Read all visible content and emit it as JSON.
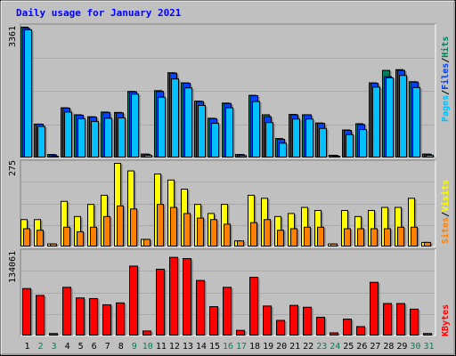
{
  "title": "Daily usage for January 2021",
  "colors": {
    "background": "#c0c0c0",
    "title": "#0000ff",
    "hits": "#00805c",
    "files": "#0040ff",
    "pages": "#00c0ff",
    "visits": "#ffff00",
    "sites": "#ff8000",
    "kbytes": "#ff0000",
    "weekend_label": "#00805c",
    "weekday_label": "#000000"
  },
  "chart_data": [
    {
      "type": "bar",
      "panel": "hits-files-pages",
      "ymax_label": "3361",
      "ylim": [
        0,
        3361
      ],
      "axis_labels": [
        "Pages",
        "Files",
        "Hits"
      ],
      "series": [
        {
          "name": "Hits",
          "values": [
            3361,
            870,
            90,
            1290,
            1110,
            1060,
            1180,
            1170,
            1710,
            100,
            1730,
            2190,
            1930,
            1460,
            1020,
            1410,
            90,
            1610,
            1110,
            500,
            1120,
            1110,
            900,
            70,
            720,
            880,
            1930,
            2250,
            2270,
            1960,
            100
          ]
        },
        {
          "name": "Files",
          "values": [
            3330,
            870,
            80,
            1280,
            1100,
            1050,
            1170,
            1160,
            1700,
            95,
            1710,
            2180,
            1920,
            1450,
            1010,
            1400,
            85,
            1600,
            1060,
            480,
            1110,
            1110,
            890,
            65,
            710,
            860,
            1920,
            2090,
            2250,
            1950,
            95
          ]
        },
        {
          "name": "Pages",
          "values": [
            3290,
            810,
            30,
            1180,
            1010,
            940,
            1020,
            1030,
            1640,
            70,
            1560,
            2030,
            1800,
            1350,
            890,
            1290,
            60,
            1450,
            910,
            380,
            1000,
            1000,
            760,
            40,
            600,
            730,
            1820,
            2060,
            2120,
            1810,
            70
          ]
        }
      ]
    },
    {
      "type": "bar",
      "panel": "visits-sites",
      "ymax_label": "275",
      "ylim": [
        0,
        275
      ],
      "axis_labels": [
        "Sites",
        "Visits"
      ],
      "series": [
        {
          "name": "Visits",
          "values": [
            90,
            90,
            10,
            150,
            100,
            140,
            170,
            275,
            250,
            25,
            240,
            220,
            190,
            140,
            110,
            140,
            20,
            170,
            160,
            100,
            110,
            130,
            120,
            10,
            120,
            100,
            120,
            130,
            130,
            160,
            15
          ]
        },
        {
          "name": "Sites",
          "values": [
            60,
            55,
            10,
            65,
            50,
            65,
            100,
            135,
            125,
            25,
            140,
            130,
            110,
            95,
            90,
            75,
            20,
            80,
            90,
            55,
            60,
            65,
            65,
            10,
            60,
            60,
            60,
            60,
            65,
            65,
            15
          ]
        }
      ]
    },
    {
      "type": "bar",
      "panel": "kbytes",
      "ymax_label": "134061",
      "ylim": [
        0,
        134061
      ],
      "axis_labels": [
        "KBytes"
      ],
      "series": [
        {
          "name": "KBytes",
          "values": [
            76000,
            65000,
            4000,
            78000,
            61000,
            60000,
            50000,
            53000,
            112000,
            8000,
            107000,
            126000,
            124000,
            89000,
            47000,
            78000,
            9000,
            94000,
            48000,
            25000,
            49000,
            46000,
            30000,
            5000,
            27000,
            15000,
            86000,
            52000,
            52000,
            43000,
            4000
          ]
        }
      ]
    }
  ],
  "x_labels": [
    "1",
    "2",
    "3",
    "4",
    "5",
    "6",
    "7",
    "8",
    "9",
    "10",
    "11",
    "12",
    "13",
    "14",
    "15",
    "16",
    "17",
    "18",
    "19",
    "20",
    "21",
    "22",
    "23",
    "24",
    "25",
    "26",
    "27",
    "28",
    "29",
    "30",
    "31"
  ],
  "weekend_days": [
    "2",
    "3",
    "9",
    "10",
    "16",
    "17",
    "23",
    "24",
    "30",
    "31"
  ]
}
